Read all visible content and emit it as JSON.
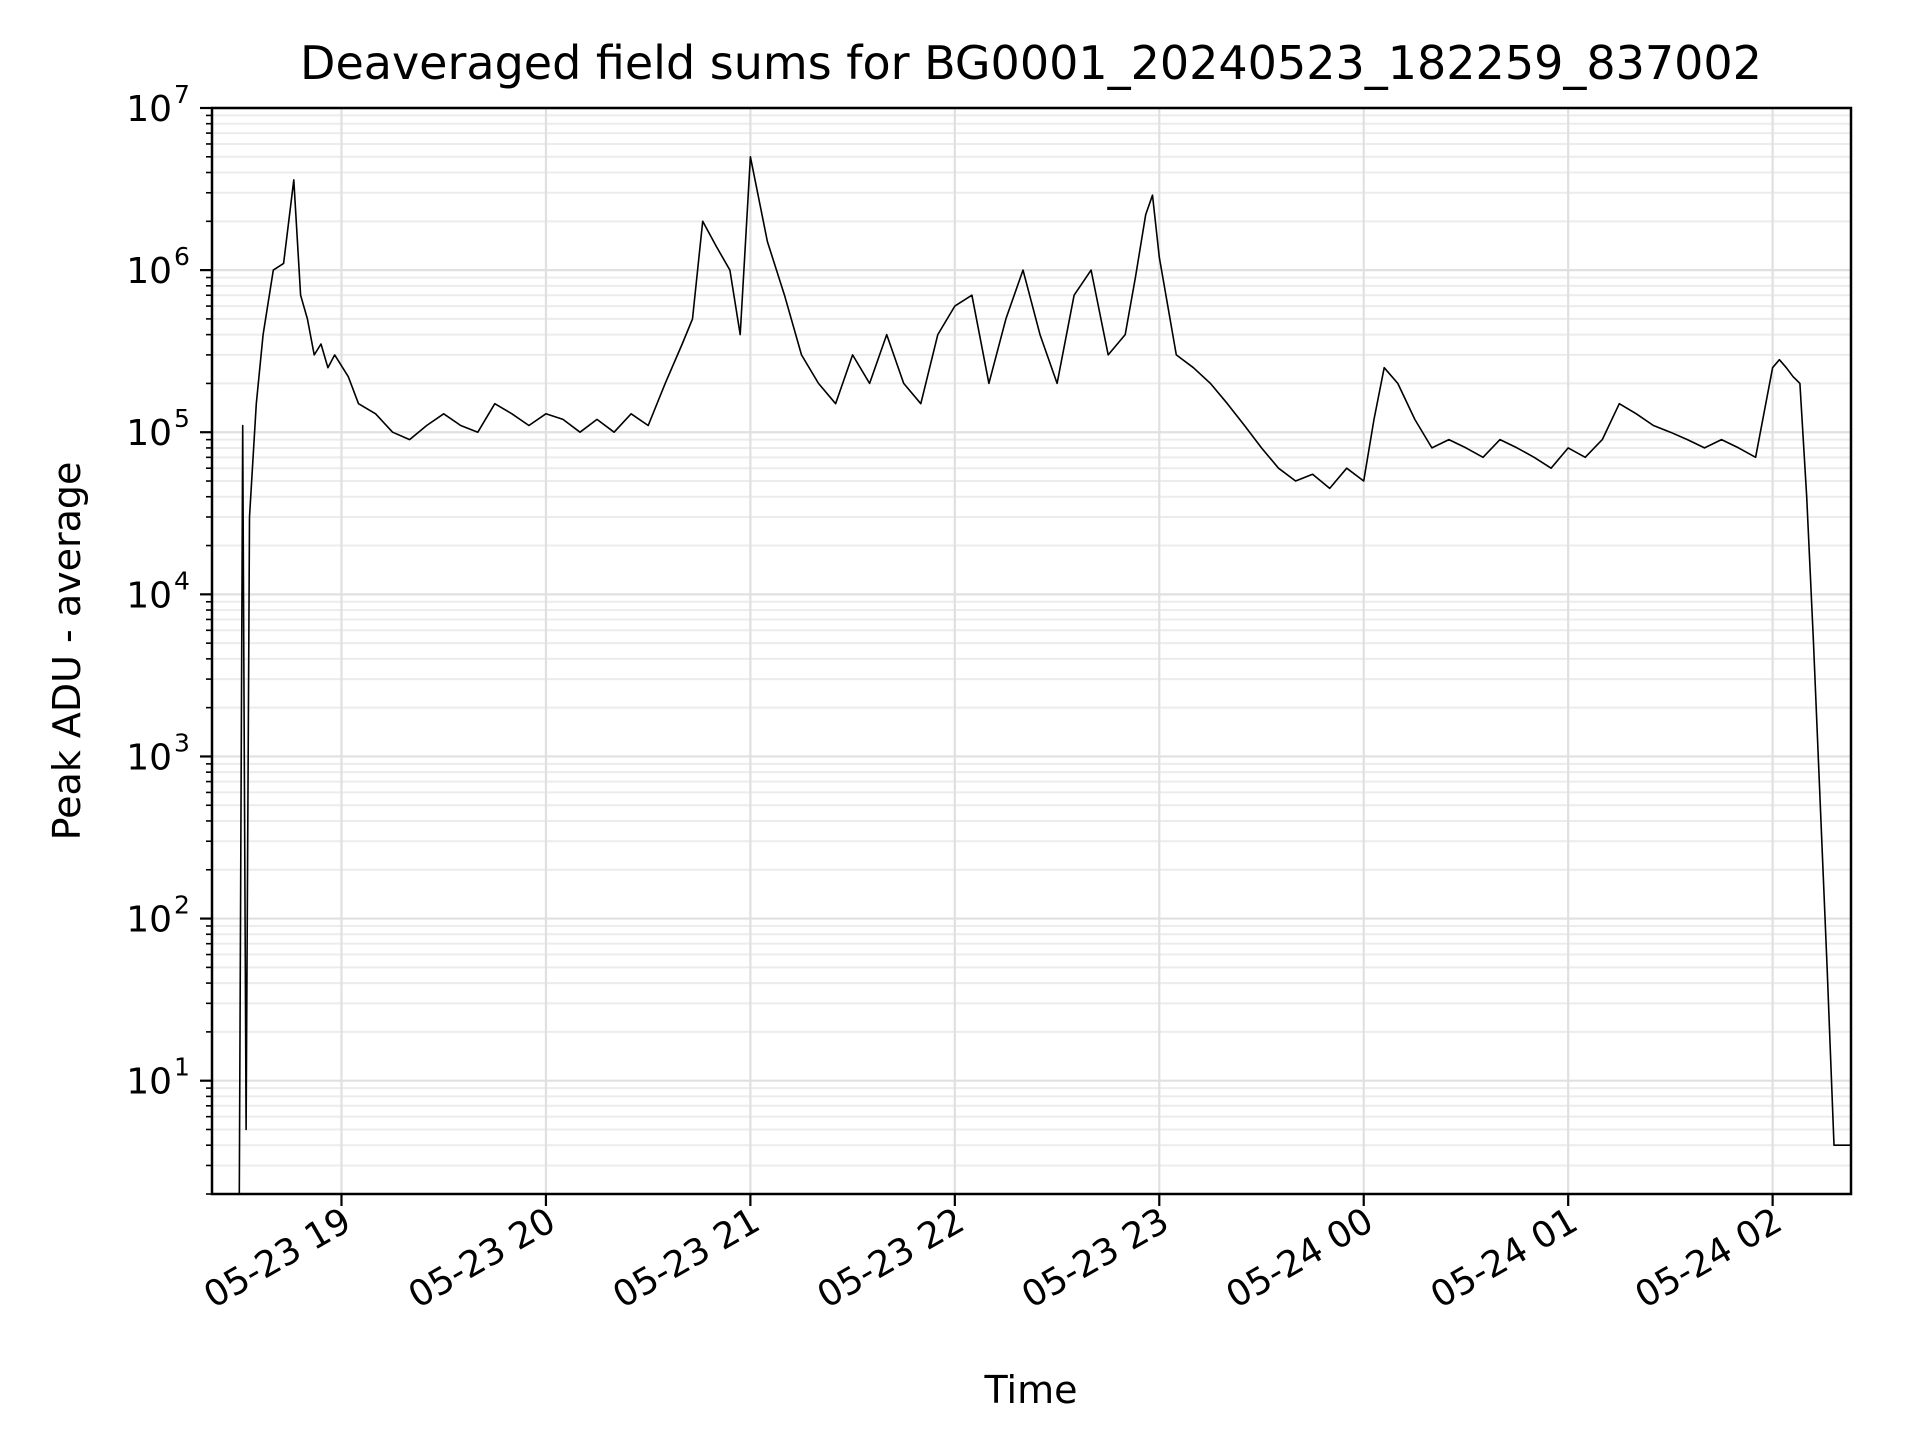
{
  "chart_data": {
    "type": "line",
    "title": "Deaveraged field sums for BG0001_20240523_182259_837002",
    "xlabel": "Time",
    "ylabel": "Peak ADU - average",
    "yscale": "log",
    "ylim": [
      2,
      10000000
    ],
    "xlim": [
      "2024-05-23 18:22",
      "2024-05-24 02:23"
    ],
    "grid": {
      "x": "major",
      "y": "major+minor"
    },
    "line_color": "#000000",
    "x_ticks": [
      {
        "time": "2024-05-23 19:00",
        "label": "05-23 19"
      },
      {
        "time": "2024-05-23 20:00",
        "label": "05-23 20"
      },
      {
        "time": "2024-05-23 21:00",
        "label": "05-23 21"
      },
      {
        "time": "2024-05-23 22:00",
        "label": "05-23 22"
      },
      {
        "time": "2024-05-23 23:00",
        "label": "05-23 23"
      },
      {
        "time": "2024-05-24 00:00",
        "label": "05-24 00"
      },
      {
        "time": "2024-05-24 01:00",
        "label": "05-24 01"
      },
      {
        "time": "2024-05-24 02:00",
        "label": "05-24 02"
      }
    ],
    "y_ticks": [
      {
        "value": 10,
        "base": "10",
        "exp": "1"
      },
      {
        "value": 100,
        "base": "10",
        "exp": "2"
      },
      {
        "value": 1000,
        "base": "10",
        "exp": "3"
      },
      {
        "value": 10000,
        "base": "10",
        "exp": "4"
      },
      {
        "value": 100000,
        "base": "10",
        "exp": "5"
      },
      {
        "value": 1000000,
        "base": "10",
        "exp": "6"
      },
      {
        "value": 10000000,
        "base": "10",
        "exp": "7"
      }
    ],
    "series": [
      {
        "x": [
          "2024-05-23 18:30",
          "2024-05-23 18:31",
          "2024-05-23 18:32",
          "2024-05-23 18:33",
          "2024-05-23 18:35",
          "2024-05-23 18:37",
          "2024-05-23 18:40",
          "2024-05-23 18:43",
          "2024-05-23 18:46",
          "2024-05-23 18:48",
          "2024-05-23 18:50",
          "2024-05-23 18:52",
          "2024-05-23 18:54",
          "2024-05-23 18:56",
          "2024-05-23 18:58",
          "2024-05-23 19:02",
          "2024-05-23 19:05",
          "2024-05-23 19:10",
          "2024-05-23 19:15",
          "2024-05-23 19:20",
          "2024-05-23 19:25",
          "2024-05-23 19:30",
          "2024-05-23 19:35",
          "2024-05-23 19:40",
          "2024-05-23 19:45",
          "2024-05-23 19:50",
          "2024-05-23 19:55",
          "2024-05-23 20:00",
          "2024-05-23 20:05",
          "2024-05-23 20:10",
          "2024-05-23 20:15",
          "2024-05-23 20:20",
          "2024-05-23 20:25",
          "2024-05-23 20:30",
          "2024-05-23 20:35",
          "2024-05-23 20:40",
          "2024-05-23 20:43",
          "2024-05-23 20:46",
          "2024-05-23 20:50",
          "2024-05-23 20:54",
          "2024-05-23 20:57",
          "2024-05-23 21:00",
          "2024-05-23 21:05",
          "2024-05-23 21:10",
          "2024-05-23 21:15",
          "2024-05-23 21:20",
          "2024-05-23 21:25",
          "2024-05-23 21:30",
          "2024-05-23 21:35",
          "2024-05-23 21:40",
          "2024-05-23 21:45",
          "2024-05-23 21:50",
          "2024-05-23 21:55",
          "2024-05-23 22:00",
          "2024-05-23 22:05",
          "2024-05-23 22:10",
          "2024-05-23 22:15",
          "2024-05-23 22:20",
          "2024-05-23 22:25",
          "2024-05-23 22:30",
          "2024-05-23 22:35",
          "2024-05-23 22:40",
          "2024-05-23 22:45",
          "2024-05-23 22:50",
          "2024-05-23 22:53",
          "2024-05-23 22:56",
          "2024-05-23 22:58",
          "2024-05-23 23:00",
          "2024-05-23 23:05",
          "2024-05-23 23:10",
          "2024-05-23 23:15",
          "2024-05-23 23:20",
          "2024-05-23 23:25",
          "2024-05-23 23:30",
          "2024-05-23 23:35",
          "2024-05-23 23:40",
          "2024-05-23 23:45",
          "2024-05-23 23:50",
          "2024-05-23 23:55",
          "2024-05-24 00:00",
          "2024-05-24 00:03",
          "2024-05-24 00:06",
          "2024-05-24 00:10",
          "2024-05-24 00:15",
          "2024-05-24 00:20",
          "2024-05-24 00:25",
          "2024-05-24 00:30",
          "2024-05-24 00:35",
          "2024-05-24 00:40",
          "2024-05-24 00:45",
          "2024-05-24 00:50",
          "2024-05-24 00:55",
          "2024-05-24 01:00",
          "2024-05-24 01:05",
          "2024-05-24 01:10",
          "2024-05-24 01:15",
          "2024-05-24 01:20",
          "2024-05-24 01:25",
          "2024-05-24 01:30",
          "2024-05-24 01:35",
          "2024-05-24 01:40",
          "2024-05-24 01:45",
          "2024-05-24 01:50",
          "2024-05-24 01:55",
          "2024-05-24 02:00",
          "2024-05-24 02:02",
          "2024-05-24 02:04",
          "2024-05-24 02:06",
          "2024-05-24 02:08",
          "2024-05-24 02:10",
          "2024-05-24 02:12",
          "2024-05-24 02:14",
          "2024-05-24 02:16",
          "2024-05-24 02:18",
          "2024-05-24 02:20",
          "2024-05-24 02:23"
        ],
        "values": [
          2,
          110000,
          5,
          30000,
          150000,
          400000,
          1000000,
          1100000,
          3600000,
          700000,
          500000,
          300000,
          350000,
          250000,
          300000,
          220000,
          150000,
          130000,
          100000,
          90000,
          110000,
          130000,
          110000,
          100000,
          150000,
          130000,
          110000,
          130000,
          120000,
          100000,
          120000,
          100000,
          130000,
          110000,
          200000,
          350000,
          500000,
          2000000,
          1400000,
          1000000,
          400000,
          5000000,
          1500000,
          700000,
          300000,
          200000,
          150000,
          300000,
          200000,
          400000,
          200000,
          150000,
          400000,
          600000,
          700000,
          200000,
          500000,
          1000000,
          400000,
          200000,
          700000,
          1000000,
          300000,
          400000,
          900000,
          2200000,
          2900000,
          1200000,
          300000,
          250000,
          200000,
          150000,
          110000,
          80000,
          60000,
          50000,
          55000,
          45000,
          60000,
          50000,
          120000,
          250000,
          200000,
          120000,
          80000,
          90000,
          80000,
          70000,
          90000,
          80000,
          70000,
          60000,
          80000,
          70000,
          90000,
          150000,
          130000,
          110000,
          100000,
          90000,
          80000,
          90000,
          80000,
          70000,
          250000,
          280000,
          250000,
          220000,
          200000,
          40000,
          5000,
          500,
          50,
          4,
          4,
          4
        ]
      }
    ]
  }
}
